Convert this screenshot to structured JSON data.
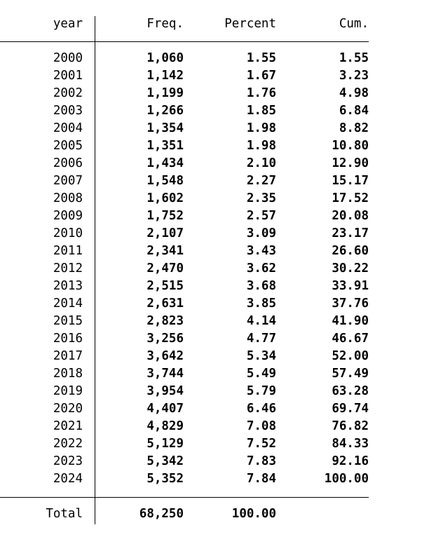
{
  "header": {
    "var": "year",
    "freq": "Freq.",
    "percent": "Percent",
    "cum": "Cum."
  },
  "rows": [
    {
      "year": "2000",
      "freq": "1,060",
      "percent": "1.55",
      "cum": "1.55"
    },
    {
      "year": "2001",
      "freq": "1,142",
      "percent": "1.67",
      "cum": "3.23"
    },
    {
      "year": "2002",
      "freq": "1,199",
      "percent": "1.76",
      "cum": "4.98"
    },
    {
      "year": "2003",
      "freq": "1,266",
      "percent": "1.85",
      "cum": "6.84"
    },
    {
      "year": "2004",
      "freq": "1,354",
      "percent": "1.98",
      "cum": "8.82"
    },
    {
      "year": "2005",
      "freq": "1,351",
      "percent": "1.98",
      "cum": "10.80"
    },
    {
      "year": "2006",
      "freq": "1,434",
      "percent": "2.10",
      "cum": "12.90"
    },
    {
      "year": "2007",
      "freq": "1,548",
      "percent": "2.27",
      "cum": "15.17"
    },
    {
      "year": "2008",
      "freq": "1,602",
      "percent": "2.35",
      "cum": "17.52"
    },
    {
      "year": "2009",
      "freq": "1,752",
      "percent": "2.57",
      "cum": "20.08"
    },
    {
      "year": "2010",
      "freq": "2,107",
      "percent": "3.09",
      "cum": "23.17"
    },
    {
      "year": "2011",
      "freq": "2,341",
      "percent": "3.43",
      "cum": "26.60"
    },
    {
      "year": "2012",
      "freq": "2,470",
      "percent": "3.62",
      "cum": "30.22"
    },
    {
      "year": "2013",
      "freq": "2,515",
      "percent": "3.68",
      "cum": "33.91"
    },
    {
      "year": "2014",
      "freq": "2,631",
      "percent": "3.85",
      "cum": "37.76"
    },
    {
      "year": "2015",
      "freq": "2,823",
      "percent": "4.14",
      "cum": "41.90"
    },
    {
      "year": "2016",
      "freq": "3,256",
      "percent": "4.77",
      "cum": "46.67"
    },
    {
      "year": "2017",
      "freq": "3,642",
      "percent": "5.34",
      "cum": "52.00"
    },
    {
      "year": "2018",
      "freq": "3,744",
      "percent": "5.49",
      "cum": "57.49"
    },
    {
      "year": "2019",
      "freq": "3,954",
      "percent": "5.79",
      "cum": "63.28"
    },
    {
      "year": "2020",
      "freq": "4,407",
      "percent": "6.46",
      "cum": "69.74"
    },
    {
      "year": "2021",
      "freq": "4,829",
      "percent": "7.08",
      "cum": "76.82"
    },
    {
      "year": "2022",
      "freq": "5,129",
      "percent": "7.52",
      "cum": "84.33"
    },
    {
      "year": "2023",
      "freq": "5,342",
      "percent": "7.83",
      "cum": "92.16"
    },
    {
      "year": "2024",
      "freq": "5,352",
      "percent": "7.84",
      "cum": "100.00"
    }
  ],
  "total": {
    "label": "Total",
    "freq": "68,250",
    "percent": "100.00"
  }
}
